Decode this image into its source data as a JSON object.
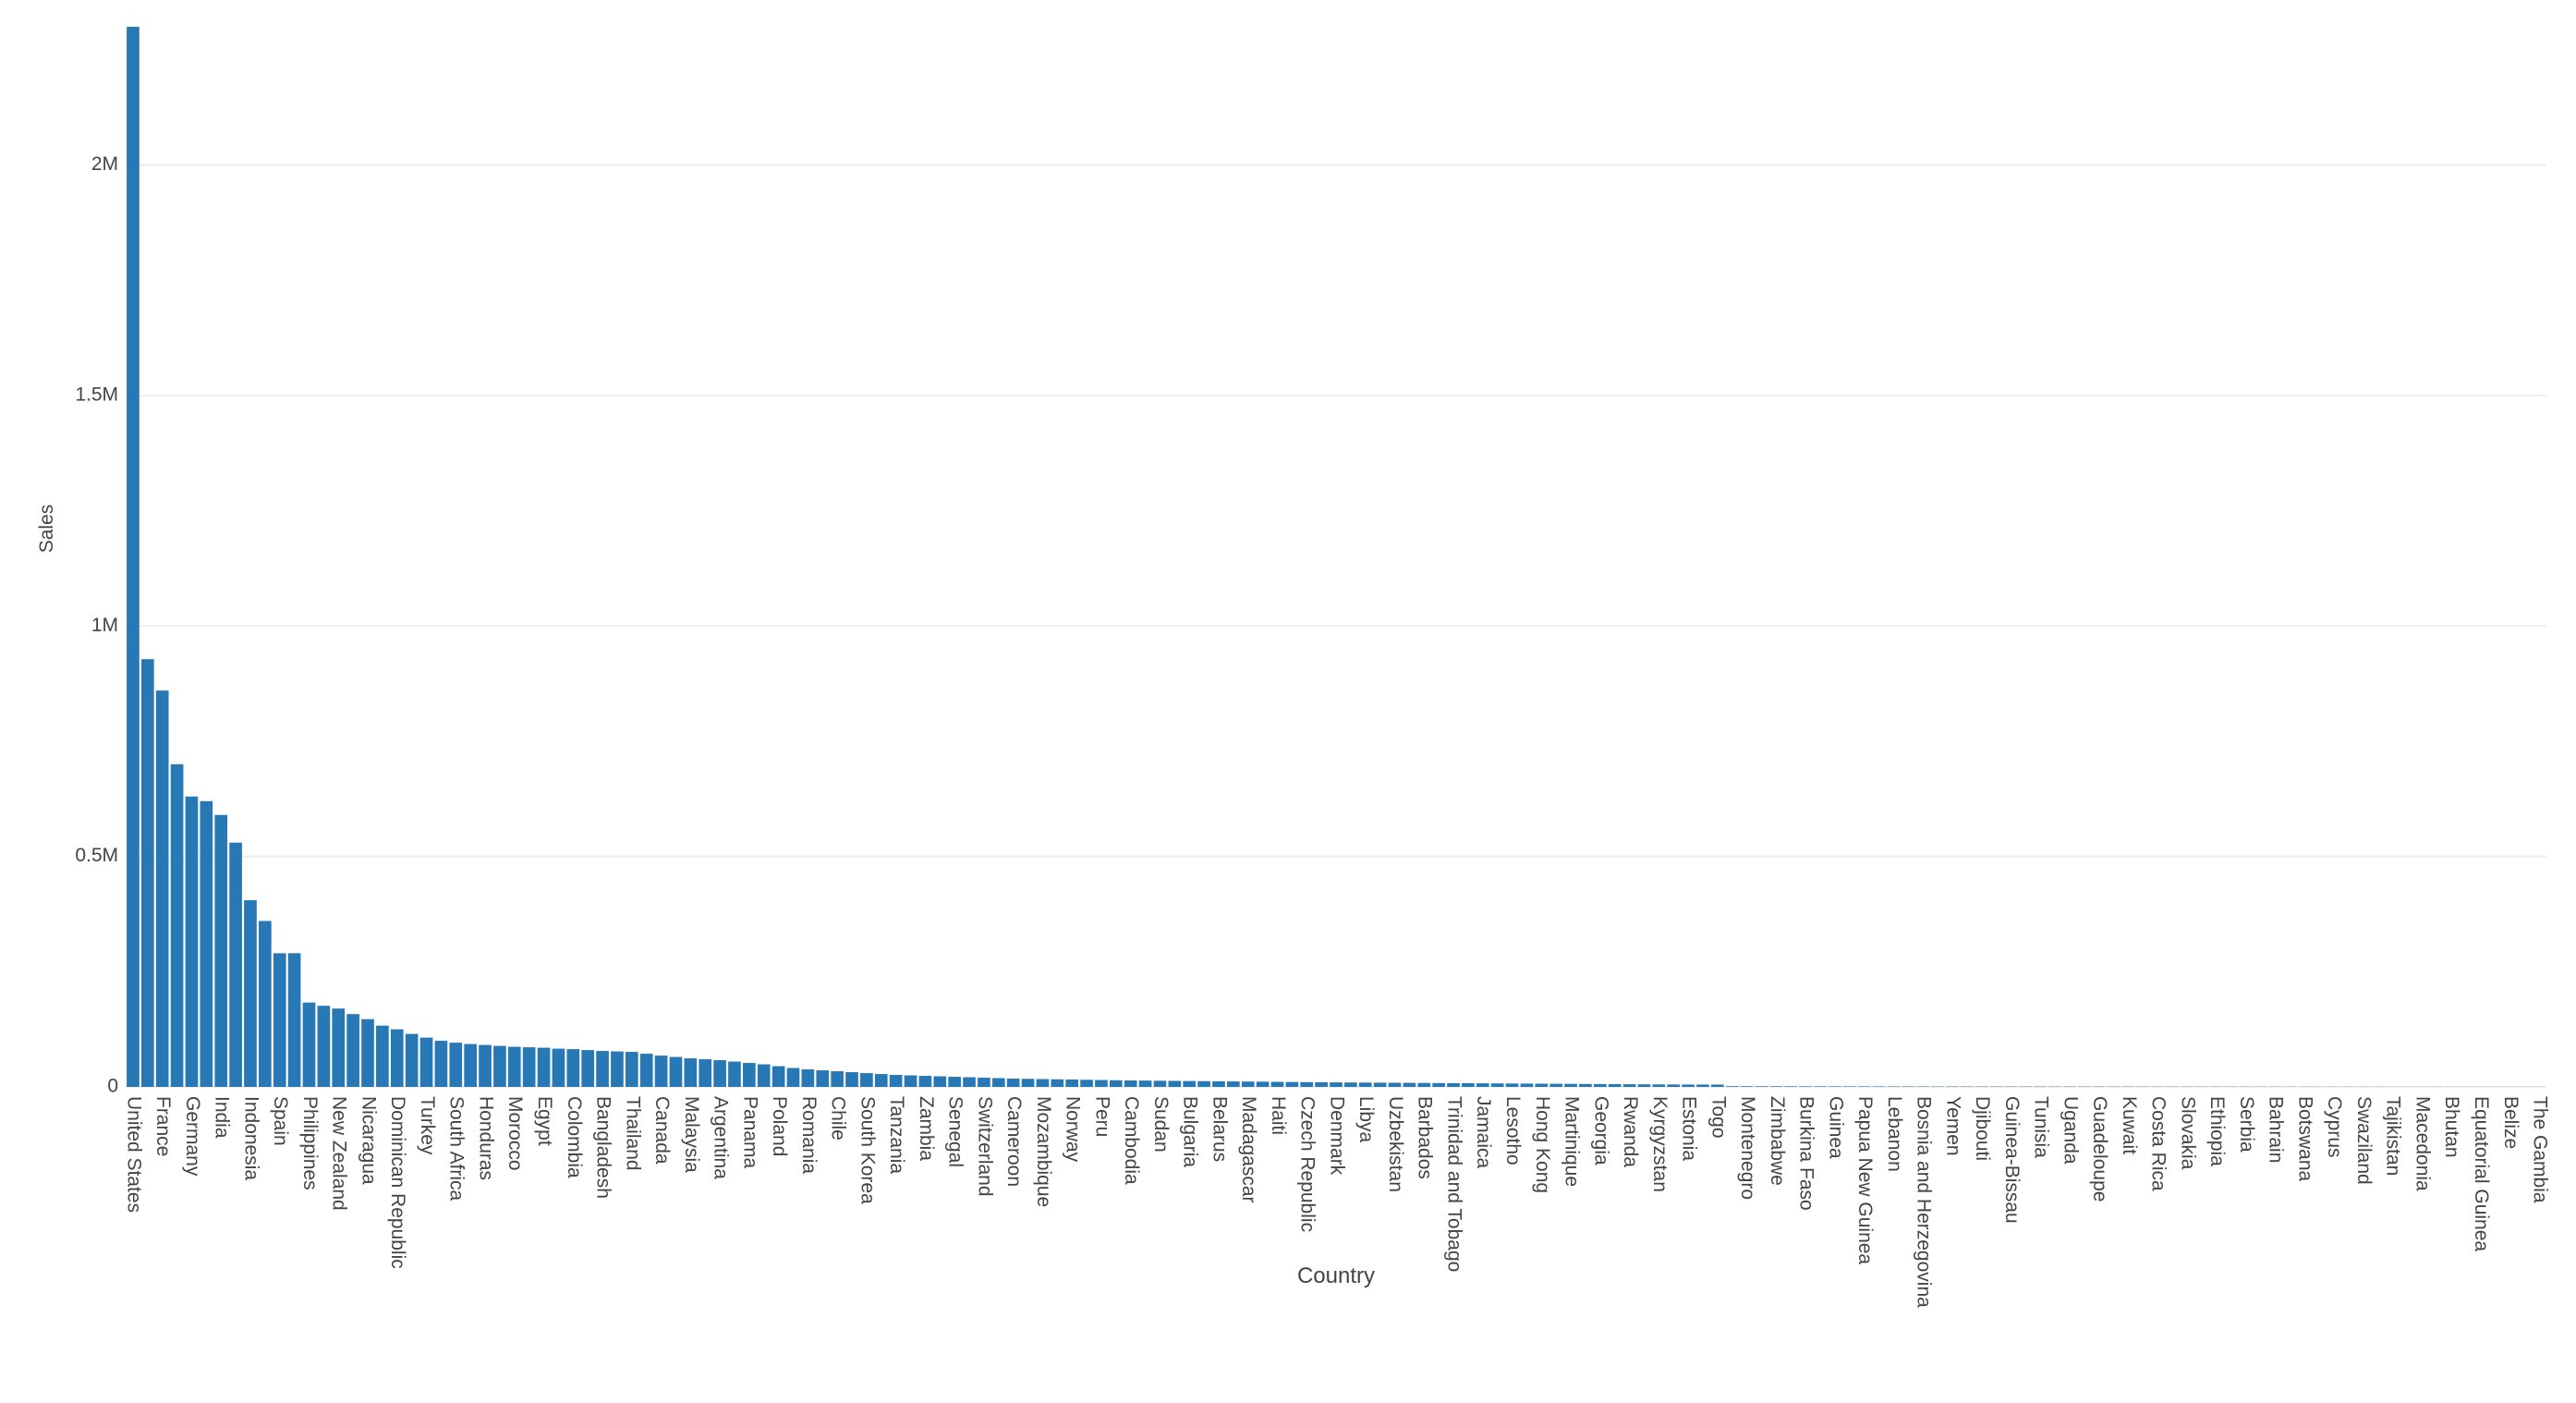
{
  "chart_data": {
    "type": "bar",
    "color": "#2878b5",
    "x_label": "Country",
    "y_label": "Sales",
    "categories": [
      "United States",
      null,
      "France",
      null,
      "Germany",
      null,
      "India",
      null,
      "Indonesia",
      null,
      "Spain",
      null,
      "Philippines",
      null,
      "New Zealand",
      null,
      "Nicaragua",
      null,
      "Dominican Republic",
      null,
      "Turkey",
      null,
      "South Africa",
      null,
      "Honduras",
      null,
      "Morocco",
      null,
      "Egypt",
      null,
      "Colombia",
      null,
      "Bangladesh",
      null,
      "Thailand",
      null,
      "Canada",
      null,
      "Malaysia",
      null,
      "Argentina",
      null,
      "Panama",
      null,
      "Poland",
      null,
      "Romania",
      null,
      "Chile",
      null,
      "South Korea",
      null,
      "Tanzania",
      null,
      "Zambia",
      null,
      "Senegal",
      null,
      "Switzerland",
      null,
      "Cameroon",
      null,
      "Mozambique",
      null,
      "Norway",
      null,
      "Peru",
      null,
      "Cambodia",
      null,
      "Sudan",
      null,
      "Bulgaria",
      null,
      "Belarus",
      null,
      "Madagascar",
      null,
      "Haiti",
      null,
      "Czech Republic",
      null,
      "Denmark",
      null,
      "Libya",
      null,
      "Uzbekistan",
      null,
      "Barbados",
      null,
      "Trinidad and Tobago",
      null,
      "Jamaica",
      null,
      "Lesotho",
      null,
      "Hong Kong",
      null,
      "Martinique",
      null,
      "Georgia",
      null,
      "Rwanda",
      null,
      "Kyrgyzstan",
      null,
      "Estonia",
      null,
      "Togo",
      null,
      "Montenegro",
      null,
      "Zimbabwe",
      null,
      "Burkina Faso",
      null,
      "Guinea",
      null,
      "Papua New Guinea",
      null,
      "Lebanon",
      null,
      "Bosnia and Herzegovina",
      null,
      "Yemen",
      null,
      "Djibouti",
      null,
      "Guinea-Bissau",
      null,
      "Tunisia",
      null,
      "Uganda",
      null,
      "Guadeloupe",
      null,
      "Kuwait",
      null,
      "Costa Rica",
      null,
      "Slovakia",
      null,
      "Ethiopia",
      null,
      "Serbia",
      null,
      "Bahrain",
      null,
      "Botswana",
      null,
      "Cyprus",
      null,
      "Swaziland",
      null,
      "Tajikistan",
      null,
      "Macedonia",
      null,
      "Bhutan",
      null,
      "Equatorial Guinea",
      null,
      "Belize",
      null,
      "The Gambia"
    ],
    "values": [
      2300000,
      928000,
      860000,
      700000,
      630000,
      620000,
      590000,
      530000,
      405000,
      360000,
      290000,
      290000,
      183000,
      176000,
      170000,
      158000,
      147000,
      133000,
      125000,
      115000,
      107000,
      100000,
      96000,
      93000,
      91000,
      89000,
      87000,
      86000,
      85000,
      83000,
      82000,
      80000,
      78000,
      77000,
      76000,
      72000,
      68000,
      65000,
      62000,
      60000,
      58000,
      55000,
      52000,
      49000,
      45000,
      41000,
      38000,
      36000,
      34000,
      32000,
      30000,
      28000,
      26000,
      25000,
      24000,
      23000,
      22000,
      21000,
      20000,
      19000,
      18000,
      17500,
      17000,
      16500,
      16000,
      15500,
      15000,
      14500,
      14000,
      13700,
      13400,
      13100,
      12800,
      12500,
      12200,
      11900,
      11600,
      11300,
      11000,
      10700,
      10400,
      10100,
      9800,
      9600,
      9400,
      9200,
      9000,
      8800,
      8600,
      8400,
      8200,
      8000,
      7800,
      7600,
      7400,
      7200,
      7000,
      6800,
      6600,
      6400,
      6200,
      6000,
      5800,
      5600,
      5400,
      5300,
      5200,
      5100,
      5000,
      1500,
      1450,
      1400,
      1350,
      1300,
      1250,
      1200,
      1150,
      1100,
      1050,
      1000,
      980,
      960,
      940,
      920,
      900,
      880,
      860,
      840,
      820,
      800,
      780,
      760,
      740,
      720,
      700,
      680,
      660,
      640,
      620,
      600,
      580,
      560,
      540,
      520,
      500,
      480,
      460,
      440,
      420,
      400,
      390,
      380,
      370,
      360,
      350,
      340,
      330,
      320,
      310,
      300,
      290,
      280,
      270,
      260,
      250
    ],
    "ylim": [
      0,
      2300000
    ],
    "yticks": [
      0,
      {
        "value": 500000,
        "label": "0.5M"
      },
      {
        "value": 1000000,
        "label": "1M"
      },
      {
        "value": 1500000,
        "label": "1.5M"
      },
      {
        "value": 2000000,
        "label": "2M"
      }
    ],
    "grid": true
  }
}
